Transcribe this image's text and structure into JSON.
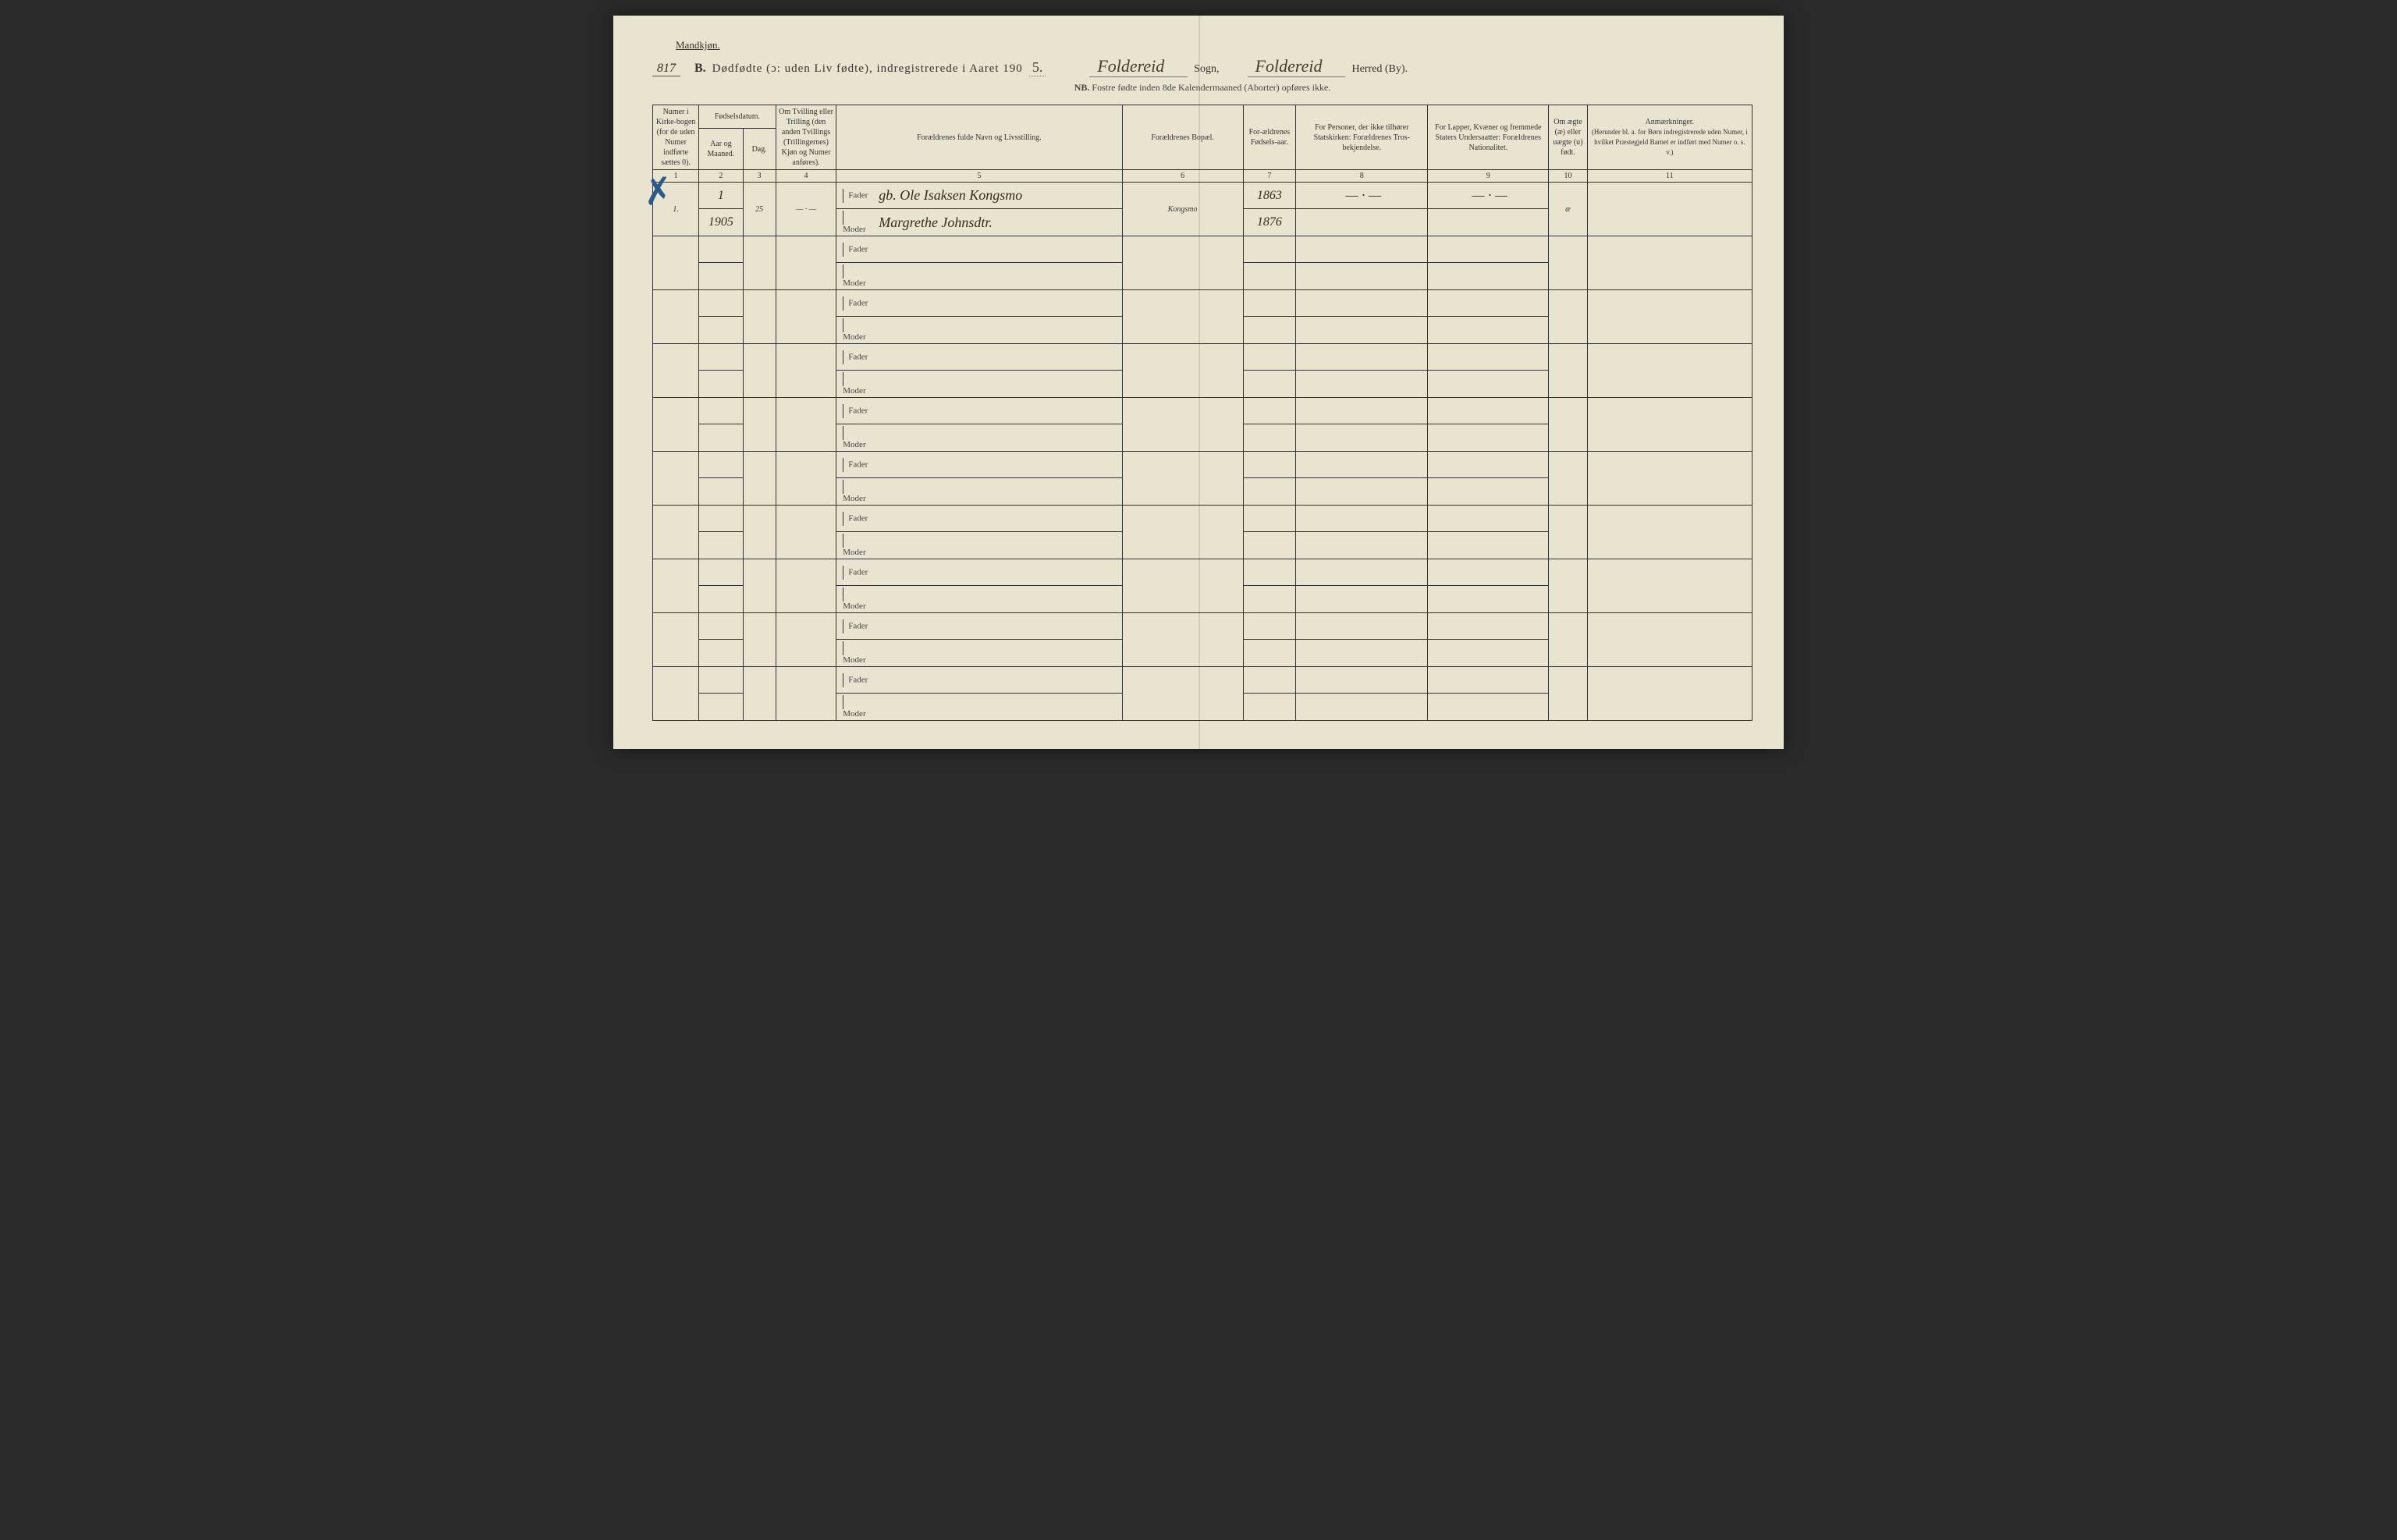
{
  "header": {
    "gender_label": "Mandkjøn.",
    "page_number": "817",
    "section_letter": "B.",
    "title_main": "Dødfødte (ɔ: uden Liv fødte), indregistrerede i Aaret 190",
    "year_suffix": "5.",
    "sogn_value": "Foldereid",
    "sogn_label": "Sogn,",
    "herred_value": "Foldereid",
    "herred_label": "Herred (By).",
    "nb_prefix": "NB.",
    "nb_text": "Fostre fødte inden 8de Kalendermaaned (Aborter) opføres ikke."
  },
  "columns": {
    "c1": "Numer i Kirke-bogen (for de uden Numer indførte sættes 0).",
    "c2_group": "Fødselsdatum.",
    "c2a": "Aar og Maaned.",
    "c2b": "Dag.",
    "c4": "Om Tvilling eller Trilling (den anden Tvillings (Trillingernes) Kjøn og Numer anføres).",
    "c5": "Forældrenes fulde Navn og Livsstilling.",
    "c6": "Forældrenes Bopæl.",
    "c7": "For-ældrenes Fødsels-aar.",
    "c8": "For Personer, der ikke tilhører Statskirken: Forældrenes Tros-bekjendelse.",
    "c9": "For Lapper, Kvæner og fremmede Staters Undersaatter: Forældrenes Nationalitet.",
    "c10": "Om ægte (æ) eller uægte (u) født.",
    "c11": "Anmærkninger.",
    "c11_sub": "(Herunder bl. a. for Børn indregistrerede uden Numer, i hvilket Præstegjeld Barnet er indført med Numer o. s. v.)"
  },
  "colnums": [
    "1",
    "2",
    "3",
    "4",
    "5",
    "6",
    "7",
    "8",
    "9",
    "10",
    "11"
  ],
  "roles": {
    "father": "Fader",
    "mother": "Moder"
  },
  "rows": [
    {
      "num": "1.",
      "year_month": "1",
      "year_month2": "1905",
      "day": "25",
      "twin": "— · —",
      "father": "gb. Ole Isaksen Kongsmo",
      "mother": "Margrethe Johnsdtr.",
      "residence": "Kongsmo",
      "father_year": "1863",
      "mother_year": "1876",
      "c8": "— · —",
      "c9": "— · —",
      "c10": "æ",
      "c11": ""
    },
    {},
    {},
    {},
    {},
    {},
    {},
    {},
    {},
    {}
  ],
  "colors": {
    "paper": "#e8e4d0",
    "ink": "#333333",
    "handwriting": "#3a2a1a",
    "checkmark": "#2a5a8a"
  },
  "column_widths_pct": [
    4.2,
    4.0,
    3.0,
    5.5,
    26.0,
    11.0,
    4.8,
    12.0,
    11.0,
    3.5,
    15.0
  ]
}
